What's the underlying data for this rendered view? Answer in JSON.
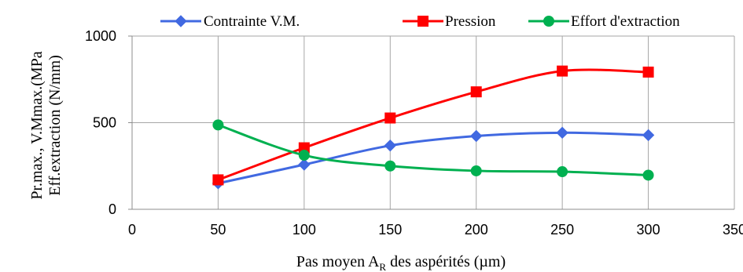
{
  "chart_data": {
    "type": "line",
    "title": "",
    "xlabel": "Pas moyen A",
    "xlabel_subscript": "R",
    "xlabel_suffix": " des aspérités (µm)",
    "ylabel_line1": "Pr.max., V.Mmax.(MPa",
    "ylabel_line2": "Eff.extraction  (N/mm)",
    "xlim": [
      0,
      350
    ],
    "ylim": [
      0,
      1000
    ],
    "x_ticks": [
      0,
      50,
      100,
      150,
      200,
      250,
      300,
      350
    ],
    "y_ticks": [
      0,
      500,
      1000
    ],
    "grid": "both",
    "legend_position": "top",
    "series": [
      {
        "name": "Contrainte V.M.",
        "color": "#4169E1",
        "marker": "diamond",
        "x": [
          50,
          100,
          150,
          200,
          250,
          300
        ],
        "y": [
          150,
          258,
          368,
          423,
          442,
          428
        ]
      },
      {
        "name": "Pression",
        "color": "#FF0000",
        "marker": "square",
        "x": [
          50,
          100,
          150,
          200,
          250,
          300
        ],
        "y": [
          170,
          355,
          527,
          678,
          798,
          792
        ]
      },
      {
        "name": "Effort d'extraction",
        "color": "#00B050",
        "marker": "circle",
        "x": [
          50,
          100,
          150,
          200,
          250,
          300
        ],
        "y": [
          487,
          312,
          250,
          222,
          217,
          197
        ]
      }
    ]
  }
}
